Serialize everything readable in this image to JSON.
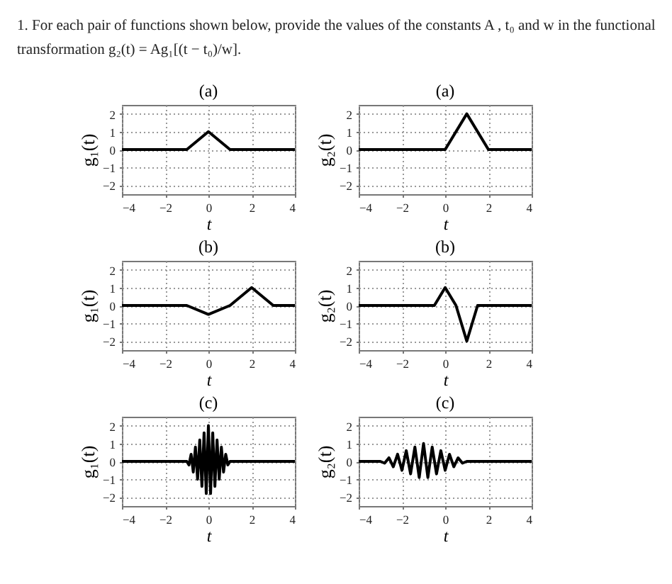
{
  "chart_data": [
    {
      "type": "other",
      "title": "1. For each pair of functions shown below, provide the values of the constants A , t₀ and w in the functional transformation g₂(t) = Ag₁[(t − t₀)/w]."
    },
    {
      "type": "line",
      "title": "(a)",
      "xlabel": "t",
      "ylabel": "g₁(t)",
      "xlim": [
        -4,
        4
      ],
      "ylim": [
        -2.5,
        2.5
      ],
      "xticks": [
        -4,
        -2,
        0,
        2,
        4
      ],
      "yticks": [
        -2,
        -1,
        0,
        1,
        2
      ],
      "grid": true,
      "series": [
        {
          "color": "#000000",
          "x": [
            -4,
            -1,
            0,
            1,
            4
          ],
          "values": [
            0,
            0,
            1,
            0,
            0
          ]
        }
      ]
    },
    {
      "type": "line",
      "title": "(a)",
      "xlabel": "t",
      "ylabel": "g₂(t)",
      "xlim": [
        -4,
        4
      ],
      "ylim": [
        -2.5,
        2.5
      ],
      "xticks": [
        -4,
        -2,
        0,
        2,
        4
      ],
      "yticks": [
        -2,
        -1,
        0,
        1,
        2
      ],
      "grid": true,
      "series": [
        {
          "color": "#000000",
          "x": [
            -4,
            0,
            1,
            2,
            4
          ],
          "values": [
            0,
            0,
            2,
            0,
            0
          ]
        }
      ]
    },
    {
      "type": "line",
      "title": "(b)",
      "xlabel": "t",
      "ylabel": "g₁(t)",
      "xlim": [
        -4,
        4
      ],
      "ylim": [
        -2.5,
        2.5
      ],
      "xticks": [
        -4,
        -2,
        0,
        2,
        4
      ],
      "yticks": [
        -2,
        -1,
        0,
        1,
        2
      ],
      "grid": true,
      "series": [
        {
          "color": "#000000",
          "x": [
            -4,
            -1,
            0,
            1,
            2,
            3,
            4
          ],
          "values": [
            0,
            0,
            -0.5,
            0,
            1,
            0,
            0
          ]
        }
      ]
    },
    {
      "type": "line",
      "title": "(b)",
      "xlabel": "t",
      "ylabel": "g₂(t)",
      "xlim": [
        -4,
        4
      ],
      "ylim": [
        -2.5,
        2.5
      ],
      "xticks": [
        -4,
        -2,
        0,
        2,
        4
      ],
      "yticks": [
        -2,
        -1,
        0,
        1,
        2
      ],
      "grid": true,
      "series": [
        {
          "color": "#000000",
          "x": [
            -4,
            -0.5,
            0,
            0.5,
            1,
            1.5,
            4
          ],
          "values": [
            0,
            0,
            1,
            0,
            -2,
            0,
            0
          ]
        }
      ]
    },
    {
      "type": "line",
      "title": "(c)",
      "xlabel": "t",
      "ylabel": "g₁(t)",
      "xlim": [
        -4,
        4
      ],
      "ylim": [
        -2.5,
        2.5
      ],
      "xticks": [
        -4,
        -2,
        0,
        2,
        4
      ],
      "yticks": [
        -2,
        -1,
        0,
        1,
        2
      ],
      "grid": true,
      "series": [
        {
          "color": "#000000",
          "x": [
            -4,
            -1,
            -0.9,
            -0.8,
            -0.7,
            -0.6,
            -0.5,
            -0.4,
            -0.3,
            -0.2,
            -0.1,
            0,
            0.1,
            0.2,
            0.3,
            0.4,
            0.5,
            0.6,
            0.7,
            0.8,
            0.9,
            1,
            4
          ],
          "values": [
            0,
            0,
            -0.2,
            0.4,
            -0.6,
            0.8,
            -1,
            1.2,
            -1.4,
            1.6,
            -1.8,
            2,
            -1.8,
            1.6,
            -1.4,
            1.2,
            -1,
            0.8,
            -0.6,
            0.4,
            -0.2,
            0,
            0
          ]
        }
      ]
    },
    {
      "type": "line",
      "title": "(c)",
      "xlabel": "t",
      "ylabel": "g₂(t)",
      "xlim": [
        -4,
        4
      ],
      "ylim": [
        -2.5,
        2.5
      ],
      "xticks": [
        -4,
        -2,
        0,
        2,
        4
      ],
      "yticks": [
        -2,
        -1,
        0,
        1,
        2
      ],
      "grid": true,
      "series": [
        {
          "color": "#000000",
          "x": [
            -4,
            -3,
            -2.8,
            -2.6,
            -2.4,
            -2.2,
            -2,
            -1.8,
            -1.6,
            -1.4,
            -1.2,
            -1,
            -0.8,
            -0.6,
            -0.4,
            -0.2,
            0,
            0.2,
            0.4,
            0.6,
            0.8,
            1,
            4
          ],
          "values": [
            0,
            0,
            -0.1,
            0.2,
            -0.3,
            0.4,
            -0.5,
            0.6,
            -0.7,
            0.8,
            -0.9,
            1,
            -0.9,
            0.8,
            -0.7,
            0.6,
            -0.5,
            0.4,
            -0.3,
            0.2,
            -0.1,
            0,
            0
          ]
        }
      ]
    }
  ]
}
